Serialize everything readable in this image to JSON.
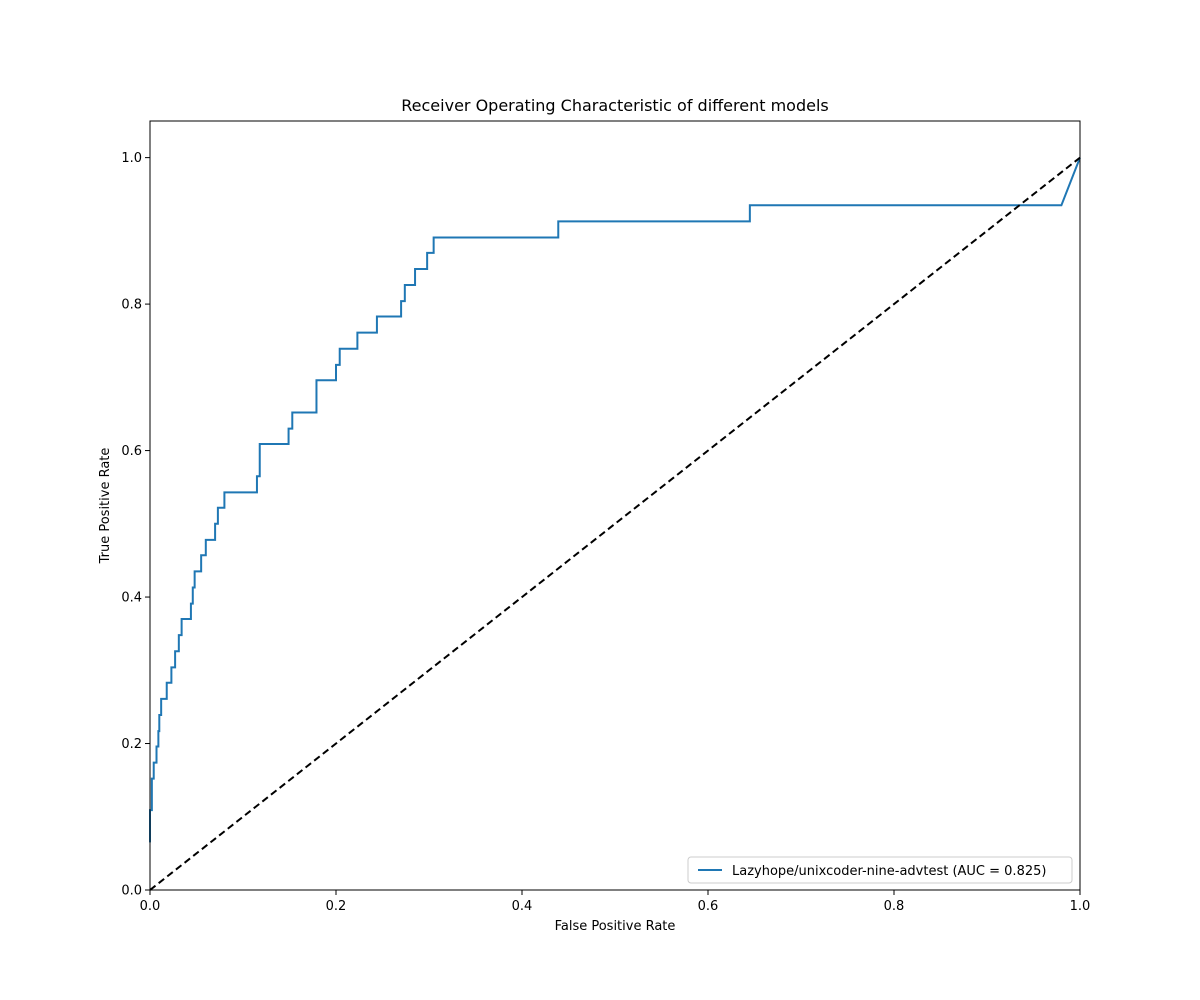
{
  "chart_data": {
    "type": "line",
    "title": "Receiver Operating Characteristic of different models",
    "xlabel": "False Positive Rate",
    "ylabel": "True Positive Rate",
    "xlim": [
      0,
      1
    ],
    "ylim": [
      0,
      1.05
    ],
    "grid": false,
    "legend_position": "lower-right",
    "xticks": [
      0,
      0.2,
      0.4,
      0.6,
      0.8,
      1
    ],
    "xtick_labels": [
      "0.0",
      "0.2",
      "0.4",
      "0.6",
      "0.8",
      "1.0"
    ],
    "yticks": [
      0,
      0.2,
      0.4,
      0.6,
      0.8,
      1
    ],
    "ytick_labels": [
      "0.0",
      "0.2",
      "0.4",
      "0.6",
      "0.8",
      "1.0"
    ],
    "series": [
      {
        "name": "Lazyhope/unixcoder-nine-advtest (AUC = 0.825)",
        "color": "#1f77b4",
        "style": "solid",
        "x": [
          0,
          0,
          0.002,
          0.002,
          0.004,
          0.004,
          0.007,
          0.007,
          0.009,
          0.009,
          0.01,
          0.01,
          0.012,
          0.012,
          0.018,
          0.018,
          0.023,
          0.023,
          0.027,
          0.027,
          0.031,
          0.031,
          0.034,
          0.034,
          0.036,
          0.036,
          0.044,
          0.044,
          0.046,
          0.046,
          0.048,
          0.048,
          0.055,
          0.055,
          0.06,
          0.06,
          0.07,
          0.07,
          0.073,
          0.073,
          0.08,
          0.08,
          0.115,
          0.115,
          0.118,
          0.118,
          0.149,
          0.149,
          0.153,
          0.153,
          0.179,
          0.179,
          0.2,
          0.2,
          0.204,
          0.204,
          0.223,
          0.223,
          0.244,
          0.244,
          0.27,
          0.27,
          0.274,
          0.274,
          0.285,
          0.285,
          0.298,
          0.298,
          0.305,
          0.305,
          0.439,
          0.439,
          0.645,
          0.645,
          0.98,
          1
        ],
        "y": [
          0.065,
          0.109,
          0.109,
          0.152,
          0.152,
          0.174,
          0.174,
          0.196,
          0.196,
          0.217,
          0.217,
          0.239,
          0.239,
          0.261,
          0.261,
          0.283,
          0.283,
          0.304,
          0.304,
          0.326,
          0.326,
          0.348,
          0.348,
          0.37,
          0.37,
          0.37,
          0.37,
          0.391,
          0.391,
          0.413,
          0.413,
          0.435,
          0.435,
          0.457,
          0.457,
          0.478,
          0.478,
          0.5,
          0.5,
          0.522,
          0.522,
          0.543,
          0.543,
          0.565,
          0.565,
          0.609,
          0.609,
          0.63,
          0.63,
          0.652,
          0.652,
          0.696,
          0.696,
          0.717,
          0.717,
          0.739,
          0.739,
          0.761,
          0.761,
          0.783,
          0.783,
          0.804,
          0.804,
          0.826,
          0.826,
          0.848,
          0.848,
          0.87,
          0.87,
          0.891,
          0.891,
          0.913,
          0.913,
          0.935,
          0.935,
          1.0
        ]
      },
      {
        "color": "#000000",
        "style": "dashed",
        "x": [
          0,
          1
        ],
        "y": [
          0,
          1
        ]
      }
    ]
  }
}
